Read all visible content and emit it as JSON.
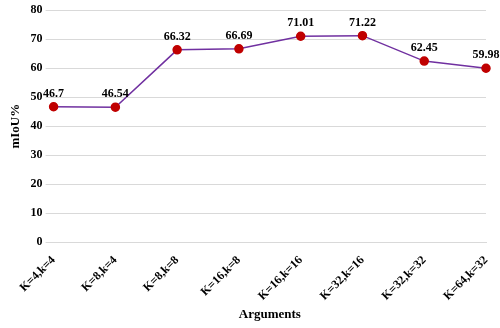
{
  "chart_data": {
    "type": "line",
    "x_label": "Arguments",
    "y_label": "mIoU%",
    "categories": [
      "K=4,k=4",
      "K=8,k=4",
      "K=8,k=8",
      "K=16,k=8",
      "K=16,k=16",
      "K=32,k=16",
      "K=32,k=32",
      "K=64,k=32"
    ],
    "values": [
      46.7,
      46.54,
      66.32,
      66.69,
      71.01,
      71.22,
      62.45,
      59.98
    ],
    "color": "#7030a0",
    "marker": "circle",
    "line_style": "solid",
    "ylim": [
      0,
      80
    ],
    "yticks": [
      0,
      10,
      20,
      30,
      40,
      50,
      60,
      70,
      80
    ],
    "grid": true,
    "data_labels": true
  }
}
